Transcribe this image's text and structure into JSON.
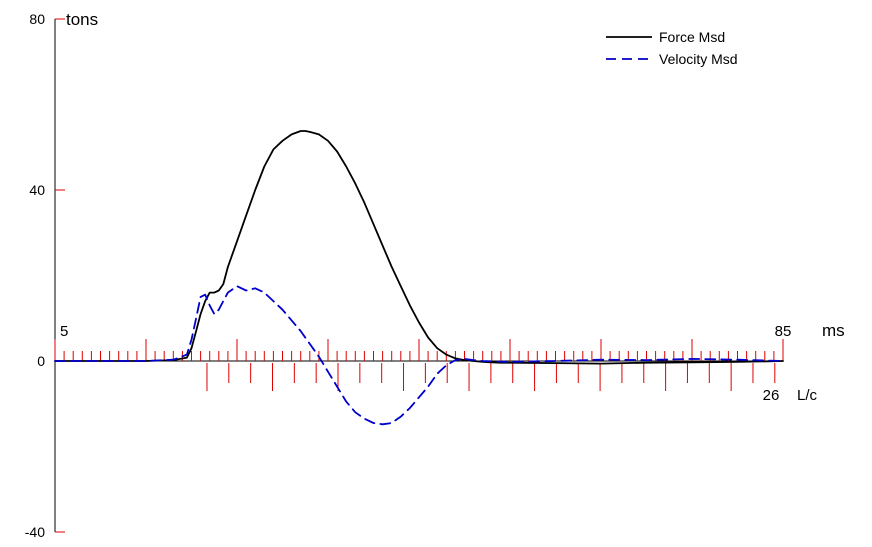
{
  "chart_data": {
    "type": "line",
    "ylabel": "tons",
    "ylim": [
      -40,
      80
    ],
    "yticks": [
      80,
      40,
      0,
      -40
    ],
    "x_axis": {
      "start_label": "5",
      "end_label": "85",
      "unit": "ms",
      "xlim": [
        5,
        85
      ],
      "minor_step": 1,
      "major_every": 10
    },
    "lc_axis": {
      "end_label": "26",
      "unit": "L/c",
      "lc_start": 0,
      "lc_end": 26,
      "lc_start_ms": 21.7,
      "lc_step_ms": 2.4,
      "major_every": 3
    },
    "legend": {
      "position": "top-right",
      "entries": [
        "Force Msd",
        "Velocity Msd"
      ]
    },
    "series": [
      {
        "name": "Force Msd",
        "color": "#000000",
        "dash": "solid",
        "x": [
          5,
          10,
          15,
          18,
          19.5,
          20,
          20.5,
          21,
          21.5,
          22,
          22.5,
          23,
          23.5,
          24,
          25,
          26,
          27,
          28,
          29,
          30,
          31,
          32,
          32.5,
          33,
          34,
          35,
          36,
          37,
          38,
          39,
          40,
          41,
          42,
          43,
          44,
          45,
          46,
          47,
          48,
          49,
          50,
          51,
          52,
          53,
          54,
          55,
          60,
          65,
          70,
          75,
          80,
          85
        ],
        "y": [
          0,
          0,
          0,
          0.2,
          0.8,
          3,
          7,
          11,
          14,
          16,
          16,
          16.5,
          18,
          22,
          28,
          34,
          40,
          45.5,
          49.5,
          51.5,
          53,
          53.8,
          53.8,
          53.6,
          53,
          51.5,
          49,
          45.5,
          41.5,
          37,
          32,
          27,
          22,
          17.5,
          13,
          9,
          5.5,
          3,
          1.5,
          0.6,
          0.2,
          0,
          -0.2,
          -0.3,
          -0.4,
          -0.4,
          -0.5,
          -0.6,
          -0.4,
          -0.3,
          -0.2,
          0
        ]
      },
      {
        "name": "Velocity Msd",
        "color": "#0000cc",
        "dash": "dashed",
        "x": [
          5,
          10,
          15,
          18,
          19.5,
          20,
          20.5,
          21,
          21.5,
          22,
          22.5,
          23,
          23.5,
          24,
          25,
          26,
          27,
          28,
          29,
          30,
          31,
          32,
          33,
          34,
          35,
          36,
          37,
          38,
          39,
          40,
          41,
          42,
          43,
          44,
          45,
          46,
          47,
          48,
          49,
          50,
          51,
          52,
          55,
          60,
          65,
          70,
          75,
          80,
          85
        ],
        "y": [
          0,
          0,
          0,
          0.3,
          1.5,
          5,
          10,
          15,
          15.5,
          13,
          11,
          12,
          14,
          16,
          17.5,
          16.5,
          17,
          16,
          14,
          12,
          9.5,
          7,
          4,
          1,
          -2.5,
          -6,
          -9.5,
          -12,
          -13.5,
          -14.5,
          -14.8,
          -14.5,
          -13,
          -11,
          -8.5,
          -6,
          -3,
          -1,
          0.2,
          0.5,
          0.2,
          0,
          -0.2,
          0,
          0.3,
          0.2,
          0.5,
          0.3,
          0
        ]
      }
    ]
  }
}
